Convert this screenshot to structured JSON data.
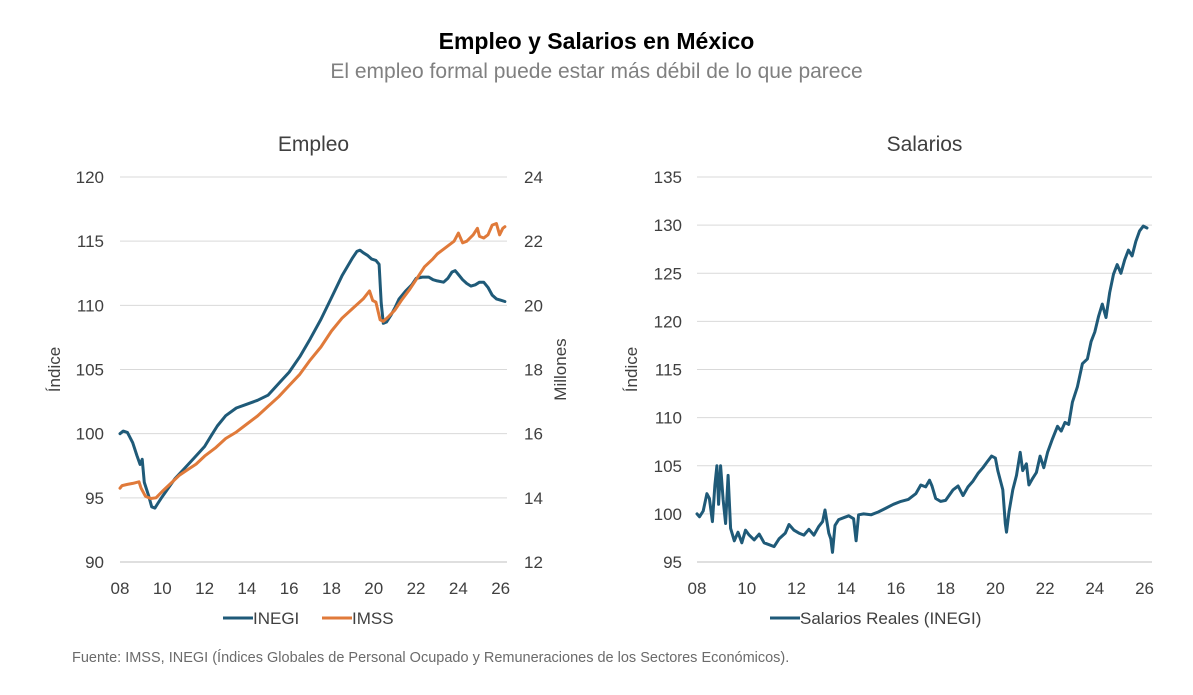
{
  "title": "Empleo y Salarios en México",
  "subtitle": "El empleo formal puede estar más débil de lo que parece",
  "source": "Fuente: IMSS, INEGI (Índices Globales de Personal Ocupado y Remuneraciones de los Sectores Económicos).",
  "colors": {
    "inegi": "#1f5a78",
    "imss": "#e07a3a",
    "grid": "#d9d9d9",
    "text": "#404040"
  },
  "chart_data": [
    {
      "type": "line",
      "title": "Empleo",
      "ylabel": "Índice",
      "y2label": "Millones",
      "xlim": [
        2008,
        2026.3
      ],
      "ylim": [
        90,
        120
      ],
      "y2lim": [
        12,
        24
      ],
      "xticks": [
        "08",
        "10",
        "12",
        "14",
        "16",
        "18",
        "20",
        "22",
        "24",
        "26"
      ],
      "yticks": [
        "90",
        "95",
        "100",
        "105",
        "110",
        "115",
        "120"
      ],
      "y2ticks": [
        "12",
        "14",
        "16",
        "18",
        "20",
        "22",
        "24"
      ],
      "grid": true,
      "legend": "bottom",
      "series": [
        {
          "name": "INEGI",
          "axis": "left",
          "color": "#1f5a78",
          "points": [
            [
              2008.0,
              100.0
            ],
            [
              2008.15,
              100.2
            ],
            [
              2008.35,
              100.1
            ],
            [
              2008.6,
              99.3
            ],
            [
              2008.8,
              98.3
            ],
            [
              2008.95,
              97.6
            ],
            [
              2009.05,
              98.0
            ],
            [
              2009.15,
              96.2
            ],
            [
              2009.35,
              95.2
            ],
            [
              2009.5,
              94.3
            ],
            [
              2009.65,
              94.2
            ],
            [
              2009.8,
              94.6
            ],
            [
              2010.0,
              95.1
            ],
            [
              2010.3,
              95.8
            ],
            [
              2010.6,
              96.5
            ],
            [
              2011.0,
              97.2
            ],
            [
              2011.5,
              98.1
            ],
            [
              2012.0,
              99.0
            ],
            [
              2012.3,
              99.8
            ],
            [
              2012.6,
              100.6
            ],
            [
              2013.0,
              101.4
            ],
            [
              2013.5,
              102.0
            ],
            [
              2014.0,
              102.3
            ],
            [
              2014.5,
              102.6
            ],
            [
              2015.0,
              103.0
            ],
            [
              2015.5,
              103.9
            ],
            [
              2016.0,
              104.8
            ],
            [
              2016.5,
              106.0
            ],
            [
              2017.0,
              107.4
            ],
            [
              2017.5,
              108.9
            ],
            [
              2018.0,
              110.6
            ],
            [
              2018.5,
              112.3
            ],
            [
              2019.0,
              113.7
            ],
            [
              2019.2,
              114.2
            ],
            [
              2019.35,
              114.3
            ],
            [
              2019.5,
              114.1
            ],
            [
              2019.7,
              113.9
            ],
            [
              2019.9,
              113.6
            ],
            [
              2020.1,
              113.5
            ],
            [
              2020.25,
              113.2
            ],
            [
              2020.35,
              110.2
            ],
            [
              2020.45,
              108.6
            ],
            [
              2020.6,
              108.7
            ],
            [
              2020.8,
              109.2
            ],
            [
              2021.0,
              109.8
            ],
            [
              2021.2,
              110.5
            ],
            [
              2021.5,
              111.1
            ],
            [
              2021.8,
              111.6
            ],
            [
              2022.0,
              112.1
            ],
            [
              2022.3,
              112.2
            ],
            [
              2022.6,
              112.2
            ],
            [
              2022.8,
              112.0
            ],
            [
              2023.0,
              111.9
            ],
            [
              2023.3,
              111.8
            ],
            [
              2023.5,
              112.1
            ],
            [
              2023.7,
              112.6
            ],
            [
              2023.85,
              112.7
            ],
            [
              2024.0,
              112.4
            ],
            [
              2024.2,
              112.0
            ],
            [
              2024.4,
              111.7
            ],
            [
              2024.6,
              111.5
            ],
            [
              2024.8,
              111.6
            ],
            [
              2025.0,
              111.8
            ],
            [
              2025.2,
              111.8
            ],
            [
              2025.4,
              111.4
            ],
            [
              2025.6,
              110.8
            ],
            [
              2025.8,
              110.5
            ],
            [
              2026.0,
              110.4
            ],
            [
              2026.2,
              110.3
            ]
          ]
        },
        {
          "name": "IMSS",
          "axis": "right",
          "color": "#e07a3a",
          "points": [
            [
              2008.0,
              14.3
            ],
            [
              2008.1,
              14.38
            ],
            [
              2008.35,
              14.42
            ],
            [
              2008.6,
              14.45
            ],
            [
              2008.9,
              14.5
            ],
            [
              2009.0,
              14.3
            ],
            [
              2009.2,
              14.05
            ],
            [
              2009.45,
              13.98
            ],
            [
              2009.7,
              14.0
            ],
            [
              2010.0,
              14.2
            ],
            [
              2010.4,
              14.45
            ],
            [
              2010.8,
              14.7
            ],
            [
              2011.2,
              14.88
            ],
            [
              2011.6,
              15.05
            ],
            [
              2012.0,
              15.3
            ],
            [
              2012.5,
              15.55
            ],
            [
              2013.0,
              15.85
            ],
            [
              2013.5,
              16.05
            ],
            [
              2014.0,
              16.3
            ],
            [
              2014.5,
              16.55
            ],
            [
              2015.0,
              16.85
            ],
            [
              2015.5,
              17.15
            ],
            [
              2016.0,
              17.5
            ],
            [
              2016.5,
              17.85
            ],
            [
              2017.0,
              18.3
            ],
            [
              2017.5,
              18.7
            ],
            [
              2018.0,
              19.2
            ],
            [
              2018.5,
              19.6
            ],
            [
              2019.0,
              19.9
            ],
            [
              2019.5,
              20.2
            ],
            [
              2019.8,
              20.45
            ],
            [
              2019.95,
              20.15
            ],
            [
              2020.1,
              20.1
            ],
            [
              2020.3,
              19.55
            ],
            [
              2020.45,
              19.5
            ],
            [
              2020.7,
              19.65
            ],
            [
              2021.0,
              19.85
            ],
            [
              2021.3,
              20.15
            ],
            [
              2021.7,
              20.5
            ],
            [
              2022.0,
              20.8
            ],
            [
              2022.4,
              21.2
            ],
            [
              2022.8,
              21.45
            ],
            [
              2023.0,
              21.6
            ],
            [
              2023.4,
              21.8
            ],
            [
              2023.8,
              22.0
            ],
            [
              2024.0,
              22.25
            ],
            [
              2024.2,
              21.95
            ],
            [
              2024.4,
              22.0
            ],
            [
              2024.7,
              22.2
            ],
            [
              2024.9,
              22.4
            ],
            [
              2025.0,
              22.15
            ],
            [
              2025.2,
              22.1
            ],
            [
              2025.4,
              22.2
            ],
            [
              2025.6,
              22.5
            ],
            [
              2025.8,
              22.55
            ],
            [
              2025.95,
              22.2
            ],
            [
              2026.1,
              22.4
            ],
            [
              2026.2,
              22.45
            ]
          ]
        }
      ]
    },
    {
      "type": "line",
      "title": "Salarios",
      "ylabel": "Índice",
      "xlim": [
        2008,
        2026.3
      ],
      "ylim": [
        95,
        135
      ],
      "xticks": [
        "08",
        "10",
        "12",
        "14",
        "16",
        "18",
        "20",
        "22",
        "24",
        "26"
      ],
      "yticks": [
        "95",
        "100",
        "105",
        "110",
        "115",
        "120",
        "125",
        "130",
        "135"
      ],
      "grid": true,
      "legend": "bottom",
      "series": [
        {
          "name": "Salarios Reales (INEGI)",
          "axis": "left",
          "color": "#1f5a78",
          "points": [
            [
              2008.0,
              100.0
            ],
            [
              2008.1,
              99.7
            ],
            [
              2008.25,
              100.3
            ],
            [
              2008.4,
              102.1
            ],
            [
              2008.5,
              101.6
            ],
            [
              2008.62,
              99.2
            ],
            [
              2008.72,
              103.0
            ],
            [
              2008.8,
              105.0
            ],
            [
              2008.87,
              101.0
            ],
            [
              2008.95,
              105.0
            ],
            [
              2009.05,
              101.5
            ],
            [
              2009.15,
              99.0
            ],
            [
              2009.25,
              104.0
            ],
            [
              2009.35,
              98.5
            ],
            [
              2009.5,
              97.2
            ],
            [
              2009.65,
              98.1
            ],
            [
              2009.8,
              97.0
            ],
            [
              2009.95,
              98.3
            ],
            [
              2010.1,
              97.8
            ],
            [
              2010.3,
              97.3
            ],
            [
              2010.5,
              97.9
            ],
            [
              2010.7,
              97.0
            ],
            [
              2010.9,
              96.8
            ],
            [
              2011.1,
              96.6
            ],
            [
              2011.3,
              97.4
            ],
            [
              2011.55,
              98.0
            ],
            [
              2011.7,
              98.9
            ],
            [
              2011.9,
              98.3
            ],
            [
              2012.1,
              98.0
            ],
            [
              2012.3,
              97.8
            ],
            [
              2012.5,
              98.4
            ],
            [
              2012.7,
              97.8
            ],
            [
              2012.9,
              98.7
            ],
            [
              2013.05,
              99.2
            ],
            [
              2013.15,
              100.4
            ],
            [
              2013.3,
              98.0
            ],
            [
              2013.38,
              97.4
            ],
            [
              2013.45,
              96.0
            ],
            [
              2013.55,
              98.8
            ],
            [
              2013.7,
              99.4
            ],
            [
              2013.9,
              99.6
            ],
            [
              2014.1,
              99.8
            ],
            [
              2014.3,
              99.5
            ],
            [
              2014.4,
              97.2
            ],
            [
              2014.5,
              99.9
            ],
            [
              2014.7,
              100.0
            ],
            [
              2015.0,
              99.9
            ],
            [
              2015.3,
              100.2
            ],
            [
              2015.6,
              100.6
            ],
            [
              2015.9,
              101.0
            ],
            [
              2016.2,
              101.3
            ],
            [
              2016.5,
              101.5
            ],
            [
              2016.8,
              102.1
            ],
            [
              2017.0,
              103.0
            ],
            [
              2017.2,
              102.8
            ],
            [
              2017.35,
              103.5
            ],
            [
              2017.45,
              102.9
            ],
            [
              2017.6,
              101.6
            ],
            [
              2017.8,
              101.3
            ],
            [
              2018.0,
              101.4
            ],
            [
              2018.3,
              102.5
            ],
            [
              2018.5,
              102.9
            ],
            [
              2018.7,
              101.9
            ],
            [
              2018.9,
              102.8
            ],
            [
              2019.1,
              103.4
            ],
            [
              2019.3,
              104.2
            ],
            [
              2019.5,
              104.8
            ],
            [
              2019.7,
              105.5
            ],
            [
              2019.85,
              106.0
            ],
            [
              2020.0,
              105.8
            ],
            [
              2020.1,
              104.5
            ],
            [
              2020.3,
              102.5
            ],
            [
              2020.4,
              99.0
            ],
            [
              2020.45,
              98.1
            ],
            [
              2020.55,
              100.2
            ],
            [
              2020.7,
              102.5
            ],
            [
              2020.85,
              104.0
            ],
            [
              2021.0,
              106.4
            ],
            [
              2021.1,
              104.5
            ],
            [
              2021.25,
              105.2
            ],
            [
              2021.35,
              103.0
            ],
            [
              2021.5,
              103.7
            ],
            [
              2021.65,
              104.3
            ],
            [
              2021.8,
              106.0
            ],
            [
              2021.95,
              104.8
            ],
            [
              2022.1,
              106.4
            ],
            [
              2022.3,
              107.8
            ],
            [
              2022.5,
              109.1
            ],
            [
              2022.65,
              108.6
            ],
            [
              2022.8,
              109.5
            ],
            [
              2022.95,
              109.3
            ],
            [
              2023.1,
              111.6
            ],
            [
              2023.3,
              113.2
            ],
            [
              2023.5,
              115.6
            ],
            [
              2023.7,
              116.1
            ],
            [
              2023.85,
              117.9
            ],
            [
              2024.0,
              118.9
            ],
            [
              2024.15,
              120.5
            ],
            [
              2024.3,
              121.8
            ],
            [
              2024.45,
              120.4
            ],
            [
              2024.6,
              123.0
            ],
            [
              2024.75,
              124.9
            ],
            [
              2024.9,
              125.9
            ],
            [
              2025.05,
              125.0
            ],
            [
              2025.2,
              126.4
            ],
            [
              2025.35,
              127.4
            ],
            [
              2025.5,
              126.8
            ],
            [
              2025.65,
              128.3
            ],
            [
              2025.8,
              129.4
            ],
            [
              2025.95,
              129.9
            ],
            [
              2026.1,
              129.7
            ]
          ]
        }
      ]
    }
  ]
}
